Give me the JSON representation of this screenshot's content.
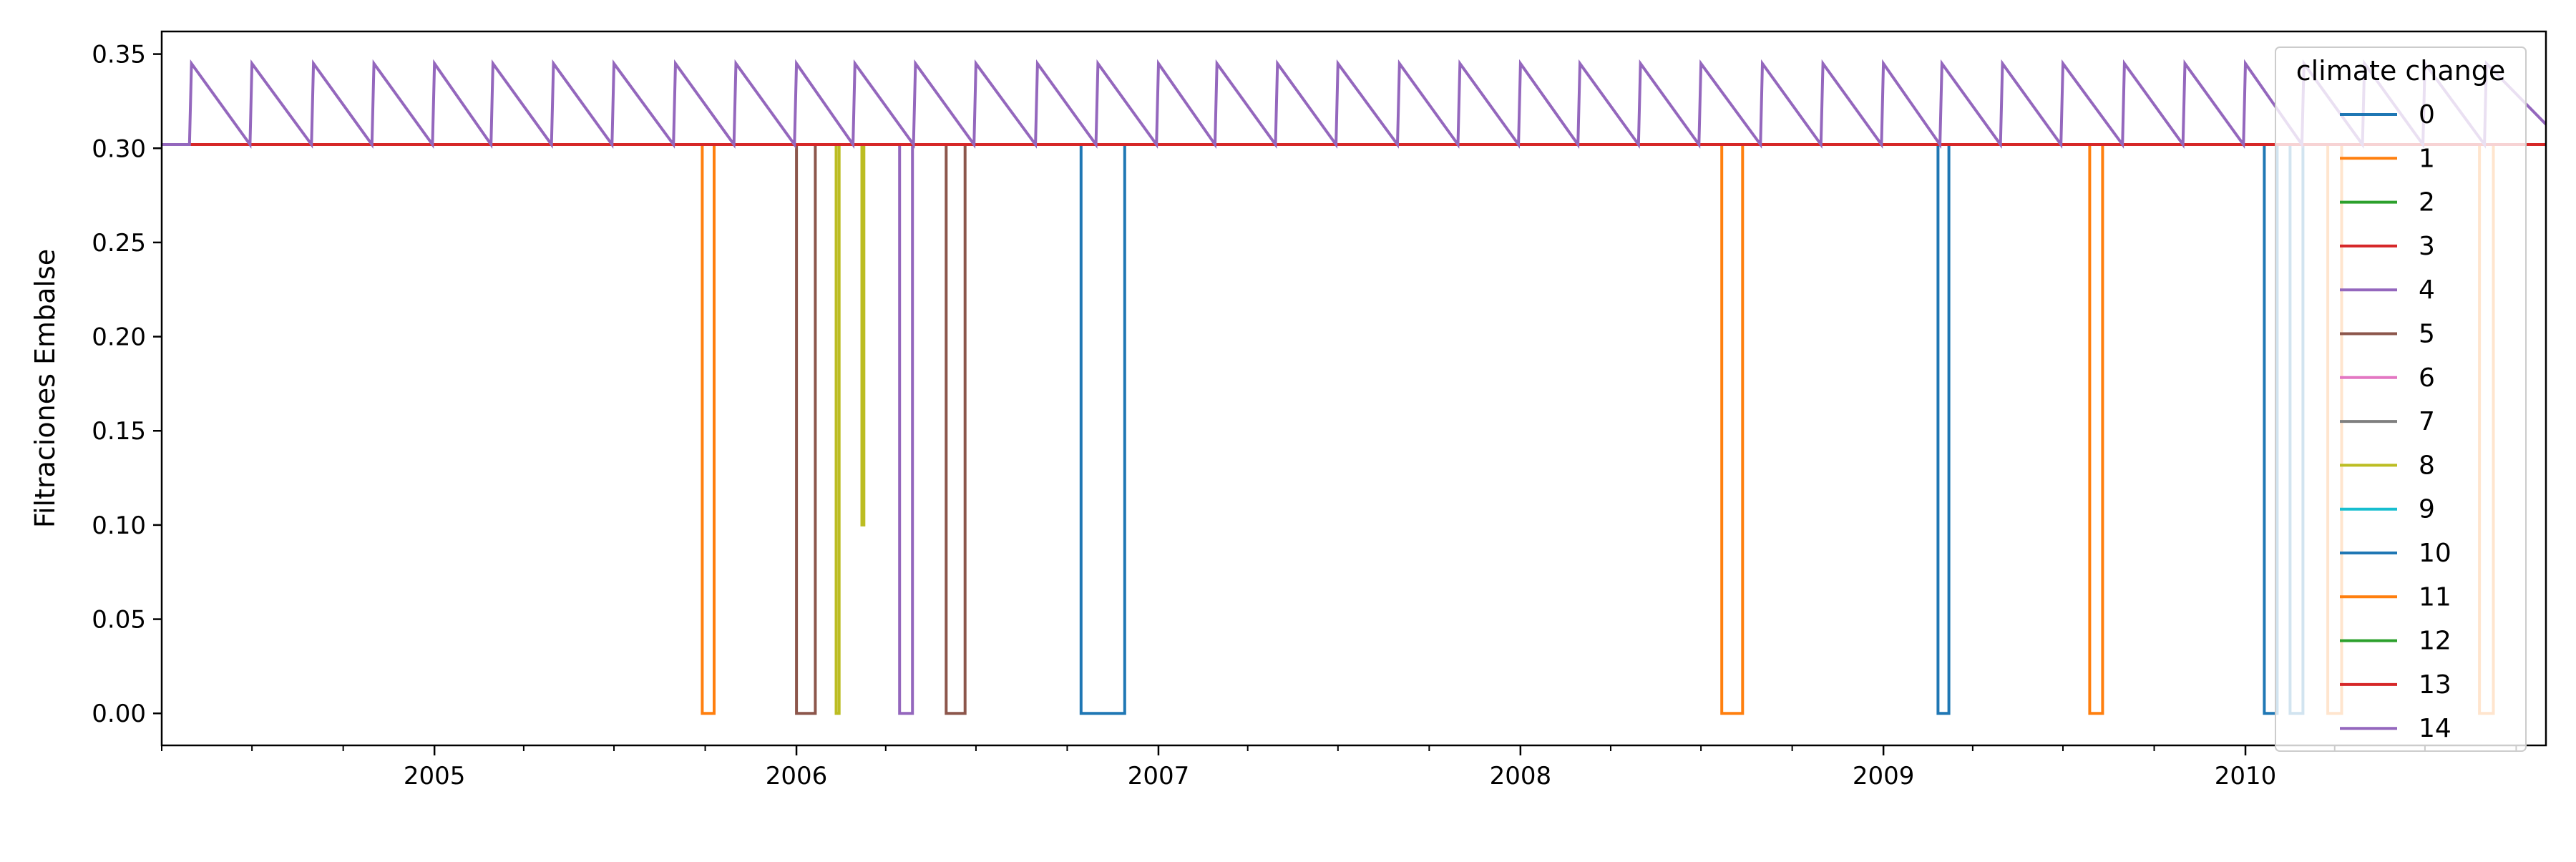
{
  "chart_data": {
    "type": "line",
    "title": "",
    "xlabel": "",
    "ylabel": "Filtraciones Embalse",
    "xlim": [
      "2004-04-01",
      "2010-10-31"
    ],
    "ylim": [
      -0.017,
      0.362
    ],
    "x_ticks_major": [
      "2005-01-01",
      "2006-01-01",
      "2007-01-01",
      "2008-01-01",
      "2009-01-01",
      "2010-01-01"
    ],
    "x_tick_labels": [
      "2005",
      "2006",
      "2007",
      "2008",
      "2009",
      "2010"
    ],
    "y_ticks": [
      0.0,
      0.05,
      0.1,
      0.15,
      0.2,
      0.25,
      0.3,
      0.35
    ],
    "y_tick_labels": [
      "0.00",
      "0.05",
      "0.10",
      "0.15",
      "0.20",
      "0.25",
      "0.30",
      "0.35"
    ],
    "grid": false,
    "legend": {
      "title": "climate change",
      "placement": "top-right"
    },
    "baseline_value": 0.302,
    "spike_value": 0.345,
    "spike_dates": [
      "2004-05-01",
      "2004-07-01",
      "2004-09-01",
      "2004-11-01",
      "2005-01-01",
      "2005-03-01",
      "2005-05-01",
      "2005-07-01",
      "2005-09-01",
      "2005-11-01",
      "2006-01-01",
      "2006-03-01",
      "2006-05-01",
      "2006-07-01",
      "2006-09-01",
      "2006-11-01",
      "2007-01-01",
      "2007-03-01",
      "2007-05-01",
      "2007-07-01",
      "2007-09-01",
      "2007-11-01",
      "2008-01-01",
      "2008-03-01",
      "2008-05-01",
      "2008-07-01",
      "2008-09-01",
      "2008-11-01",
      "2009-01-01",
      "2009-03-01",
      "2009-05-01",
      "2009-07-01",
      "2009-09-01",
      "2009-11-01",
      "2010-01-01",
      "2010-03-01",
      "2010-05-01",
      "2010-07-01",
      "2010-09-01"
    ],
    "series": [
      {
        "name": "0",
        "color": "#1f77b4",
        "drops": [
          {
            "start": "2006-10-15",
            "end": "2006-11-28",
            "value": 0.0
          }
        ]
      },
      {
        "name": "1",
        "color": "#ff7f0e",
        "drops": [
          {
            "start": "2005-09-28",
            "end": "2005-10-10",
            "value": 0.0
          }
        ]
      },
      {
        "name": "2",
        "color": "#2ca02c",
        "drops": []
      },
      {
        "name": "3",
        "color": "#d62728",
        "drops": []
      },
      {
        "name": "4",
        "color": "#9467bd",
        "drops": [
          {
            "start": "2006-04-15",
            "end": "2006-04-28",
            "value": 0.0
          }
        ]
      },
      {
        "name": "5",
        "color": "#8c564b",
        "drops": [
          {
            "start": "2006-01-01",
            "end": "2006-01-20",
            "value": 0.0
          },
          {
            "start": "2006-06-01",
            "end": "2006-06-20",
            "value": 0.0
          }
        ]
      },
      {
        "name": "6",
        "color": "#e377c2",
        "drops": []
      },
      {
        "name": "7",
        "color": "#7f7f7f",
        "drops": []
      },
      {
        "name": "8",
        "color": "#bcbd22",
        "drops": [
          {
            "start": "2006-02-10",
            "end": "2006-02-13",
            "value": 0.0
          },
          {
            "start": "2006-03-08",
            "end": "2006-03-10",
            "value": 0.1
          }
        ]
      },
      {
        "name": "9",
        "color": "#17becf",
        "drops": []
      },
      {
        "name": "10",
        "color": "#1f77b4",
        "drops": [
          {
            "start": "2009-02-25",
            "end": "2009-03-08",
            "value": 0.0
          },
          {
            "start": "2010-01-20",
            "end": "2010-02-02",
            "value": 0.0
          },
          {
            "start": "2010-02-15",
            "end": "2010-02-28",
            "value": 0.0
          }
        ]
      },
      {
        "name": "11",
        "color": "#ff7f0e",
        "drops": [
          {
            "start": "2008-07-22",
            "end": "2008-08-12",
            "value": 0.0
          },
          {
            "start": "2009-07-28",
            "end": "2009-08-10",
            "value": 0.0
          },
          {
            "start": "2010-03-25",
            "end": "2010-04-08",
            "value": 0.0
          },
          {
            "start": "2010-08-25",
            "end": "2010-09-08",
            "value": 0.0
          }
        ]
      },
      {
        "name": "12",
        "color": "#2ca02c",
        "drops": []
      },
      {
        "name": "13",
        "color": "#d62728",
        "drops": []
      },
      {
        "name": "14",
        "color": "#9467bd",
        "drops": []
      }
    ]
  }
}
